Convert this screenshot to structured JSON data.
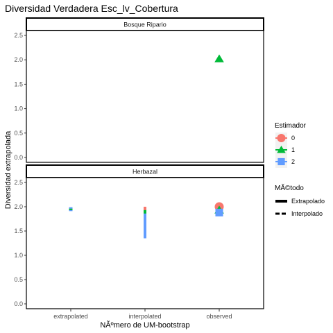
{
  "colors": {
    "0": "#F8766D",
    "1": "#00BA38",
    "2": "#619CFF"
  },
  "chart_data": {
    "type": "scatter",
    "title": "Diversidad Verdadera Esc_lv_Cobertura",
    "xlabel": "NÃºmero de UM-bootstrap",
    "ylabel": "Diversidad extrapolada",
    "categories": [
      "extrapolated",
      "interpolated",
      "observed"
    ],
    "ylim": [
      -0.1,
      2.6
    ],
    "yticks": [
      0.0,
      0.5,
      1.0,
      1.5,
      2.0,
      2.5
    ],
    "ytick_labels": [
      "0.0",
      "0.5",
      "1.0",
      "1.5",
      "2.0",
      "2.5"
    ],
    "panels": [
      {
        "strip": "Bosque Ripario",
        "lines": [],
        "points": [
          {
            "x": "observed",
            "y": 2.02,
            "estimador": "1",
            "metodo": "observed"
          }
        ]
      },
      {
        "strip": "Herbazal",
        "lines": [
          {
            "x": "extrapolated",
            "y0": 1.91,
            "y1": 1.99,
            "estimador": "2",
            "metodo": "Extrapolado"
          },
          {
            "x": "extrapolated",
            "y0": 1.93,
            "y1": 1.96,
            "estimador": "1",
            "metodo": "Extrapolado"
          },
          {
            "x": "interpolated",
            "y0": 1.35,
            "y1": 1.92,
            "estimador": "2",
            "metodo": "Interpolado"
          },
          {
            "x": "interpolated",
            "y0": 1.86,
            "y1": 1.95,
            "estimador": "1",
            "metodo": "Interpolado"
          },
          {
            "x": "interpolated",
            "y0": 1.93,
            "y1": 2.0,
            "estimador": "0",
            "metodo": "Interpolado"
          }
        ],
        "points": [
          {
            "x": "observed",
            "y": 2.0,
            "estimador": "0",
            "metodo": "observed"
          },
          {
            "x": "observed",
            "y": 1.93,
            "estimador": "1",
            "metodo": "observed"
          },
          {
            "x": "observed",
            "y": 1.88,
            "estimador": "2",
            "metodo": "observed"
          }
        ]
      }
    ],
    "legend": {
      "placement": "right",
      "estimador": {
        "title": "Estimador",
        "entries": [
          "0",
          "1",
          "2"
        ]
      },
      "metodo": {
        "title": "MÃ©todo",
        "entries": [
          "Extrapolado",
          "Interpolado"
        ]
      }
    }
  }
}
